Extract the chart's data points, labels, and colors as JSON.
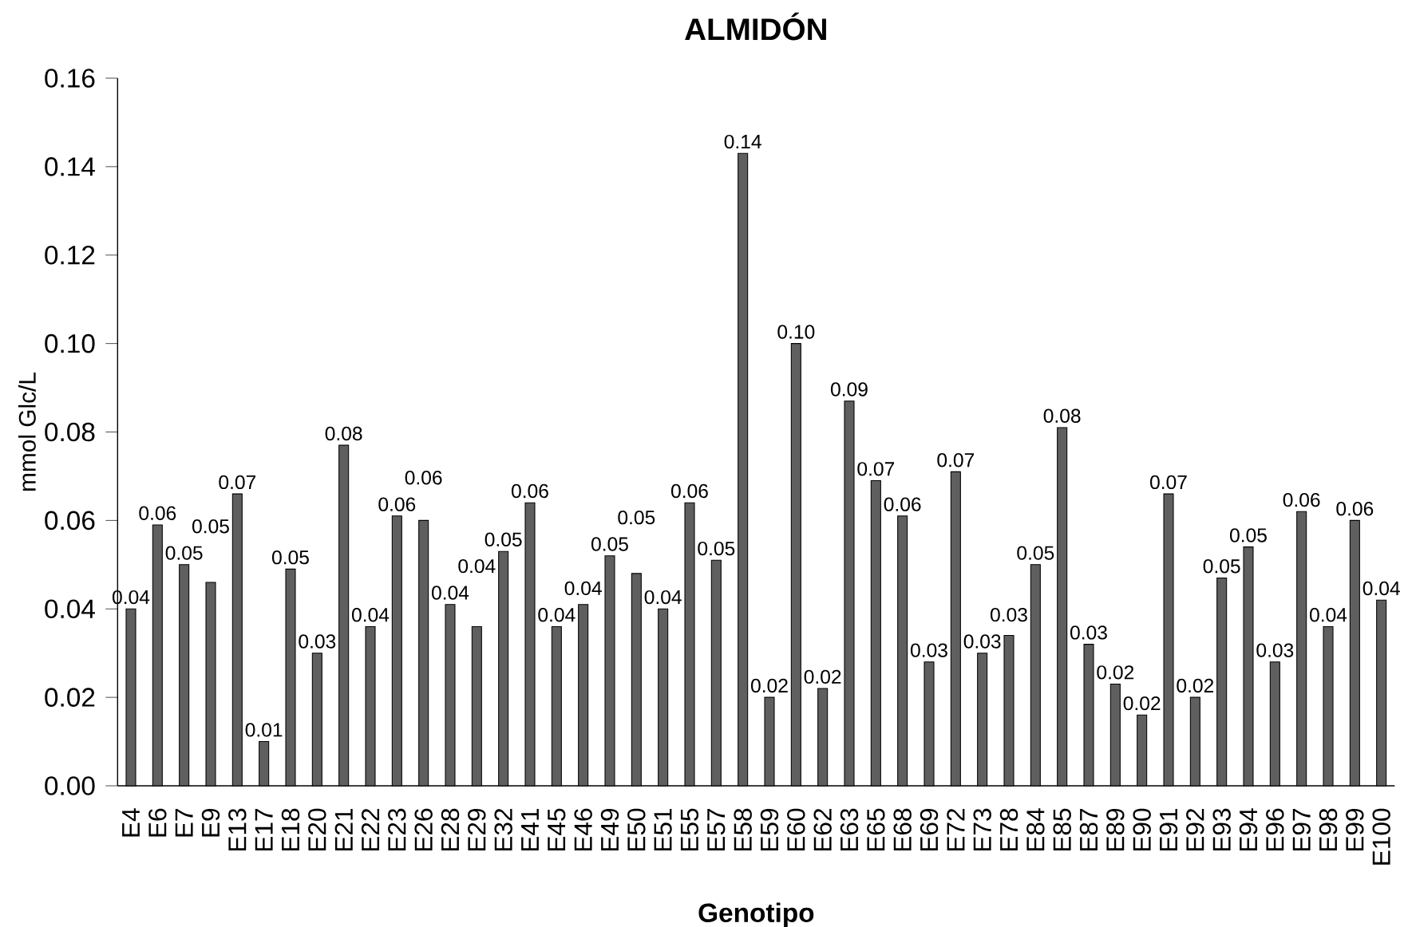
{
  "chart_data": {
    "type": "bar",
    "title": "ALMIDÓN",
    "xlabel": "Genotipo",
    "ylabel": "mmol Glc/L",
    "categories": [
      "E4",
      "E6",
      "E7",
      "E9",
      "E13",
      "E17",
      "E18",
      "E20",
      "E21",
      "E22",
      "E23",
      "E26",
      "E28",
      "E29",
      "E32",
      "E41",
      "E45",
      "E46",
      "E49",
      "E50",
      "E51",
      "E55",
      "E57",
      "E58",
      "E59",
      "E60",
      "E62",
      "E63",
      "E65",
      "E68",
      "E69",
      "E72",
      "E73",
      "E78",
      "E84",
      "E85",
      "E87",
      "E89",
      "E90",
      "E91",
      "E92",
      "E93",
      "E94",
      "E96",
      "E97",
      "E98",
      "E99",
      "E100"
    ],
    "values": [
      0.04,
      0.059,
      0.05,
      0.046,
      0.066,
      0.01,
      0.049,
      0.03,
      0.077,
      0.036,
      0.061,
      0.06,
      0.041,
      0.036,
      0.053,
      0.064,
      0.036,
      0.041,
      0.052,
      0.048,
      0.04,
      0.064,
      0.051,
      0.143,
      0.02,
      0.1,
      0.022,
      0.087,
      0.069,
      0.061,
      0.028,
      0.071,
      0.03,
      0.034,
      0.05,
      0.081,
      0.032,
      0.023,
      0.016,
      0.066,
      0.02,
      0.047,
      0.054,
      0.028,
      0.062,
      0.036,
      0.06,
      0.042
    ],
    "value_labels": [
      "0.04",
      "0.06",
      "0.05",
      "0.05",
      "0.07",
      "0.01",
      "0.05",
      "0.03",
      "0.08",
      "0.04",
      "0.06",
      "0.06",
      "0.04",
      "0.04",
      "0.05",
      "0.06",
      "0.04",
      "0.04",
      "0.05",
      "0.05",
      "0.04",
      "0.06",
      "0.05",
      "0.14",
      "0.02",
      "0.10",
      "0.02",
      "0.09",
      "0.07",
      "0.06",
      "0.03",
      "0.07",
      "0.03",
      "0.03",
      "0.05",
      "0.08",
      "0.03",
      "0.02",
      "0.02",
      "0.07",
      "0.02",
      "0.05",
      "0.05",
      "0.03",
      "0.06",
      "0.04",
      "0.06",
      "0.04"
    ],
    "color": "#5f5f5f",
    "ylim": [
      0,
      0.16
    ],
    "yticks": [
      {
        "value": 0,
        "label": "0.00"
      },
      {
        "value": 0.02,
        "label": "0.02"
      },
      {
        "value": 0.04,
        "label": "0.04"
      },
      {
        "value": 0.06,
        "label": "0.06"
      },
      {
        "value": 0.08,
        "label": "0.08"
      },
      {
        "value": 0.1,
        "label": "0.10"
      },
      {
        "value": 0.12,
        "label": "0.12"
      },
      {
        "value": 0.14,
        "label": "0.14"
      },
      {
        "value": 0.16,
        "label": "0.16"
      }
    ],
    "grid": false
  }
}
